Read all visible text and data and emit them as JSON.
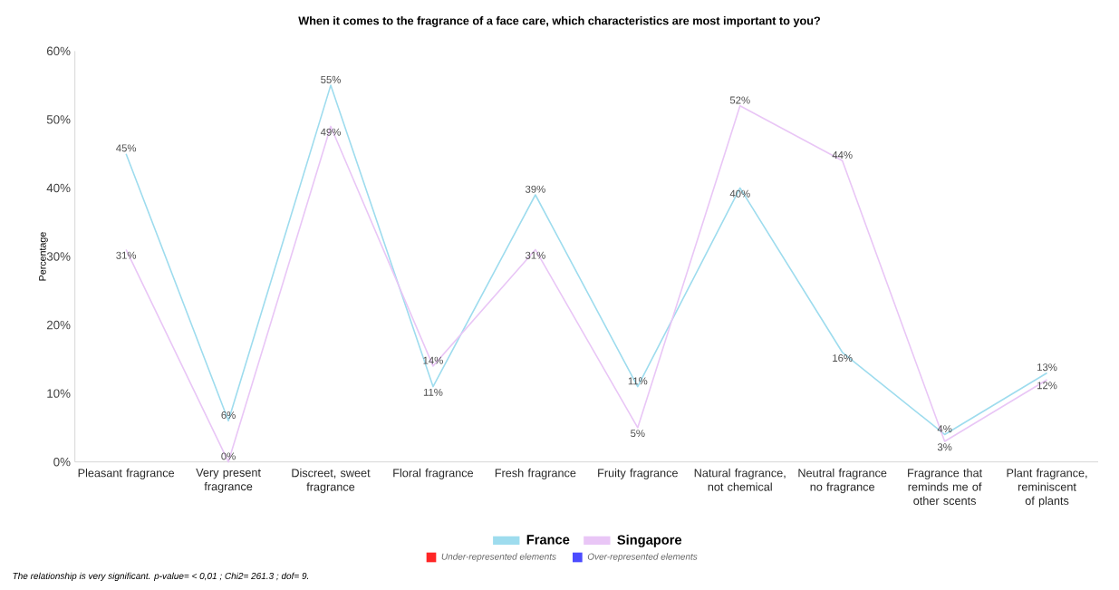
{
  "chart_data": {
    "type": "line",
    "title": "When it comes to the fragrance of a face care, which characteristics are most important to you?",
    "ylabel": "Percentage",
    "categories": [
      "Pleasant fragrance",
      "Very present fragrance",
      "Discreet, sweet fragrance",
      "Floral fragrance",
      "Fresh fragrance",
      "Fruity fragrance",
      "Natural fragrance, not chemical",
      "Neutral fragrance no fragrance",
      "Fragrance that reminds me of other scents",
      "Plant fragrance, reminiscent of plants"
    ],
    "series": [
      {
        "name": "France",
        "color": "#9edcee",
        "values": [
          45,
          6,
          55,
          11,
          39,
          11,
          40,
          16,
          4,
          13
        ],
        "value_labels": [
          "45%",
          "6%",
          "55%",
          "11%",
          "39%",
          "11%",
          "40%",
          "16%",
          "4%",
          "13%"
        ]
      },
      {
        "name": "Singapore",
        "color": "#e9c6f6",
        "values": [
          31,
          0,
          49,
          14,
          31,
          5,
          52,
          44,
          3,
          12
        ],
        "value_labels": [
          "31%",
          "0%",
          "49%",
          "14%",
          "31%",
          "5%",
          "52%",
          "44%",
          "3%",
          "12%"
        ]
      }
    ],
    "ylim": [
      0,
      60
    ],
    "yticks": [
      {
        "value": 0,
        "label": "0%"
      },
      {
        "value": 10,
        "label": "10%"
      },
      {
        "value": 20,
        "label": "20%"
      },
      {
        "value": 30,
        "label": "30%"
      },
      {
        "value": 40,
        "label": "40%"
      },
      {
        "value": 50,
        "label": "50%"
      },
      {
        "value": 60,
        "label": "60%"
      }
    ],
    "grid": false,
    "legend": "bottom",
    "marker": "none",
    "line_style": "solid",
    "annotations": [
      "Under-represented elements",
      "Over-represented elements",
      "The relationship is very significant. p-value= < 0,01 ; Chi2= 261.3 ; dof= 9."
    ]
  }
}
